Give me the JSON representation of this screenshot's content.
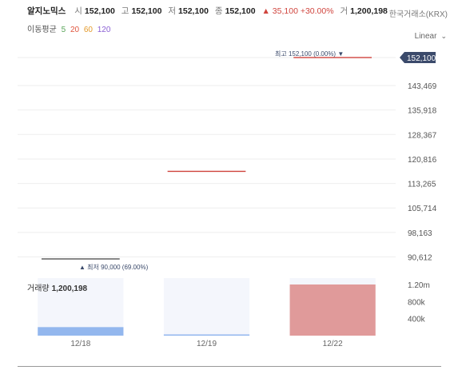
{
  "header": {
    "name": "알지노믹스",
    "open_label": "시",
    "open": "152,100",
    "high_label": "고",
    "high": "152,100",
    "low_label": "저",
    "low": "152,100",
    "close_label": "종",
    "close": "152,100",
    "change": "▲ 35,100 +30.00%",
    "volume_label": "거",
    "volume": "1,200,198",
    "exchange": "한국거래소(KRX)"
  },
  "moving_avg": {
    "label": "이동평균",
    "periods": [
      "5",
      "20",
      "60",
      "120"
    ]
  },
  "scale": {
    "label": "Linear",
    "chevron": "⌄"
  },
  "colors": {
    "up": "#d0453e",
    "down": "#4a6fd4",
    "ma5": "#5aa55a",
    "ma20": "#e0553e",
    "ma60": "#e49a2b",
    "ma120": "#8a5fd4",
    "vol_up": "#e09a9a",
    "vol_down": "#93b7ee",
    "vol_bg": "#f4f6fc",
    "price_tag": "#3b4a6b"
  },
  "price_tag": "152,100",
  "annotations": {
    "max": "최고 152,100 (0.00%) ▼",
    "min": "▲ 최저 90,000 (69.00%)"
  },
  "volume_title": {
    "label": "거래량",
    "value": "1,200,198"
  },
  "chart_data": {
    "type": "candlestick",
    "categories": [
      "12/18",
      "12/19",
      "12/22"
    ],
    "price_ticks": [
      "152,100",
      "143,469",
      "135,918",
      "128,367",
      "120,816",
      "113,265",
      "105,714",
      "98,163",
      "90,612"
    ],
    "price_ylim": [
      90000,
      152100
    ],
    "candles": [
      {
        "date": "12/18",
        "open": 90000,
        "high": 90000,
        "low": 90000,
        "close": 90000
      },
      {
        "date": "12/19",
        "open": 117000,
        "high": 117000,
        "low": 117000,
        "close": 117000
      },
      {
        "date": "12/22",
        "open": 152100,
        "high": 152100,
        "low": 152100,
        "close": 152100
      }
    ],
    "volume_ticks": [
      "1.20m",
      "800k",
      "400k"
    ],
    "volume_ylim": [
      0,
      1350000
    ],
    "volumes": [
      {
        "date": "12/18",
        "value": 200000,
        "dir": "down"
      },
      {
        "date": "12/19",
        "value": 5000,
        "dir": "down"
      },
      {
        "date": "12/22",
        "value": 1200198,
        "dir": "up"
      }
    ]
  }
}
